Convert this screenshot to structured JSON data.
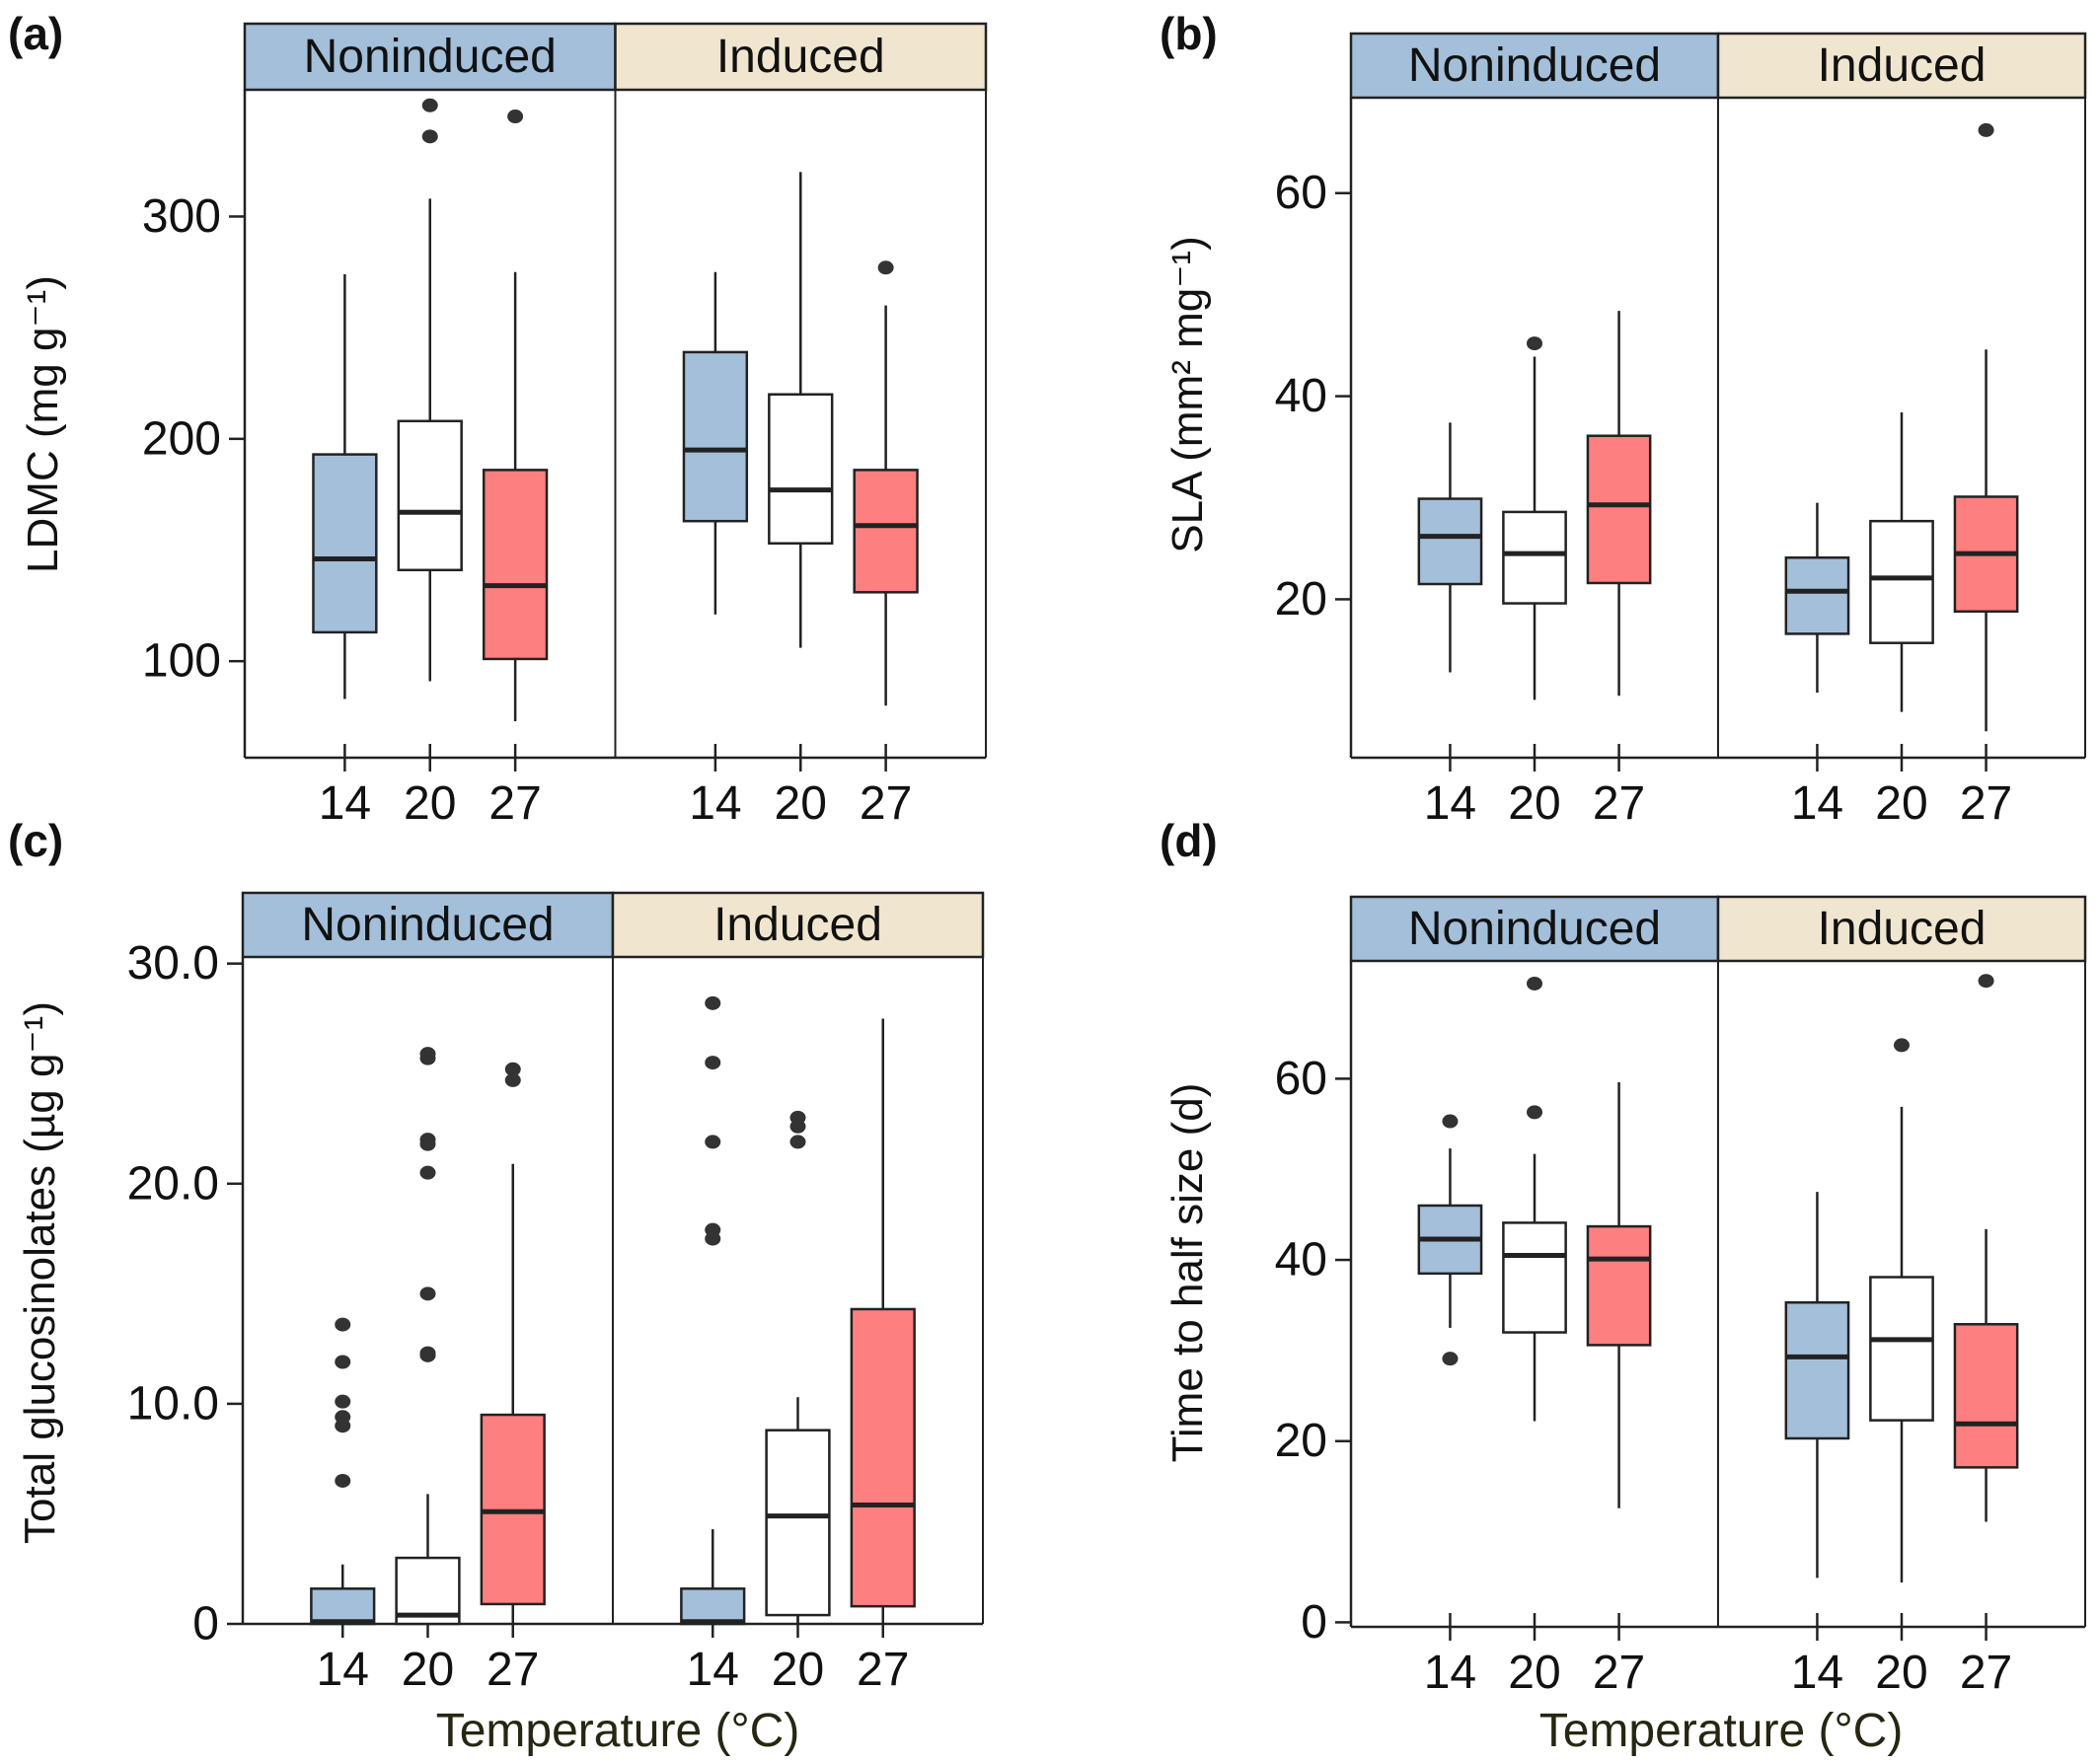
{
  "colors": {
    "noninduced_strip": "#a3bfd9",
    "induced_strip": "#f0e5cf",
    "box_14": "#a3bfd9",
    "box_20": "#ffffff",
    "box_27": "#fd7f7f",
    "line": "#222222",
    "outlier": "#333333"
  },
  "chart_data": [
    {
      "type": "box",
      "panel": "(a)",
      "ylabel": "LDMC (mg g⁻¹)",
      "xlabel": "",
      "facets": [
        "Noninduced",
        "Induced"
      ],
      "categories": [
        "14",
        "20",
        "27"
      ],
      "ylim": [
        56.6,
        357
      ],
      "yticks": [
        100,
        200,
        300
      ],
      "ytick_labels": [
        "100",
        "200",
        "300"
      ],
      "groups": [
        {
          "facet": "Noninduced",
          "temp": "14",
          "whisker_low": 83,
          "q1": 113,
          "median": 146,
          "q3": 193,
          "whisker_high": 274,
          "outliers": []
        },
        {
          "facet": "Noninduced",
          "temp": "20",
          "whisker_low": 91,
          "q1": 141,
          "median": 167,
          "q3": 208,
          "whisker_high": 308,
          "outliers": [
            336,
            350
          ]
        },
        {
          "facet": "Noninduced",
          "temp": "27",
          "whisker_low": 73,
          "q1": 101,
          "median": 134,
          "q3": 186,
          "whisker_high": 275,
          "outliers": [
            345
          ]
        },
        {
          "facet": "Induced",
          "temp": "14",
          "whisker_low": 121,
          "q1": 163,
          "median": 195,
          "q3": 239,
          "whisker_high": 275,
          "outliers": []
        },
        {
          "facet": "Induced",
          "temp": "20",
          "whisker_low": 106,
          "q1": 153,
          "median": 177,
          "q3": 220,
          "whisker_high": 320,
          "outliers": []
        },
        {
          "facet": "Induced",
          "temp": "27",
          "whisker_low": 80,
          "q1": 131,
          "median": 161,
          "q3": 186,
          "whisker_high": 260,
          "outliers": [
            277
          ]
        }
      ]
    },
    {
      "type": "box",
      "panel": "(b)",
      "ylabel": "SLA (mm² mg⁻¹)",
      "xlabel": "",
      "facets": [
        "Noninduced",
        "Induced"
      ],
      "categories": [
        "14",
        "20",
        "27"
      ],
      "ylim": [
        4.4,
        69.4
      ],
      "yticks": [
        20,
        40,
        60
      ],
      "ytick_labels": [
        "20",
        "40",
        "60"
      ],
      "groups": [
        {
          "facet": "Noninduced",
          "temp": "14",
          "whisker_low": 12.8,
          "q1": 21.5,
          "median": 26.2,
          "q3": 29.9,
          "whisker_high": 37.4,
          "outliers": []
        },
        {
          "facet": "Noninduced",
          "temp": "20",
          "whisker_low": 10.1,
          "q1": 19.6,
          "median": 24.5,
          "q3": 28.6,
          "whisker_high": 43.9,
          "outliers": [
            45.2
          ]
        },
        {
          "facet": "Noninduced",
          "temp": "27",
          "whisker_low": 10.5,
          "q1": 21.6,
          "median": 29.3,
          "q3": 36.1,
          "whisker_high": 48.4,
          "outliers": []
        },
        {
          "facet": "Induced",
          "temp": "14",
          "whisker_low": 10.8,
          "q1": 16.6,
          "median": 20.8,
          "q3": 24.1,
          "whisker_high": 29.5,
          "outliers": []
        },
        {
          "facet": "Induced",
          "temp": "20",
          "whisker_low": 8.9,
          "q1": 15.7,
          "median": 22.1,
          "q3": 27.7,
          "whisker_high": 38.4,
          "outliers": []
        },
        {
          "facet": "Induced",
          "temp": "27",
          "whisker_low": 7.0,
          "q1": 18.8,
          "median": 24.5,
          "q3": 30.1,
          "whisker_high": 44.6,
          "outliers": [
            66.2
          ]
        }
      ]
    },
    {
      "type": "box",
      "panel": "(c)",
      "ylabel": "Total glucosinolates (µg  g⁻¹)",
      "xlabel": "Temperature (°C)",
      "facets": [
        "Noninduced",
        "Induced"
      ],
      "categories": [
        "14",
        "20",
        "27"
      ],
      "ylim": [
        0,
        30.3
      ],
      "yticks": [
        0,
        10,
        20,
        30
      ],
      "ytick_labels": [
        "0",
        "10.0",
        "20.0",
        "30.0"
      ],
      "groups": [
        {
          "facet": "Noninduced",
          "temp": "14",
          "whisker_low": 0,
          "q1": 0,
          "median": 0.1,
          "q3": 1.6,
          "whisker_high": 2.7,
          "outliers": [
            6.5,
            9.0,
            9.4,
            10.1,
            11.9,
            13.6
          ]
        },
        {
          "facet": "Noninduced",
          "temp": "20",
          "whisker_low": 0,
          "q1": 0,
          "median": 0.4,
          "q3": 3.0,
          "whisker_high": 5.9,
          "outliers": [
            12.2,
            12.3,
            15.0,
            20.5,
            21.8,
            22.0,
            25.7,
            25.9
          ]
        },
        {
          "facet": "Noninduced",
          "temp": "27",
          "whisker_low": 0,
          "q1": 0.9,
          "median": 5.1,
          "q3": 9.5,
          "whisker_high": 20.9,
          "outliers": [
            24.7,
            25.2
          ]
        },
        {
          "facet": "Induced",
          "temp": "14",
          "whisker_low": 0,
          "q1": 0,
          "median": 0.1,
          "q3": 1.6,
          "whisker_high": 4.3,
          "outliers": [
            17.5,
            17.9,
            21.9,
            25.5,
            28.2
          ]
        },
        {
          "facet": "Induced",
          "temp": "20",
          "whisker_low": 0,
          "q1": 0.4,
          "median": 4.9,
          "q3": 8.8,
          "whisker_high": 10.3,
          "outliers": [
            21.9,
            22.6,
            23.0
          ]
        },
        {
          "facet": "Induced",
          "temp": "27",
          "whisker_low": 0,
          "q1": 0.8,
          "median": 5.4,
          "q3": 14.3,
          "whisker_high": 27.5,
          "outliers": []
        }
      ]
    },
    {
      "type": "box",
      "panel": "(d)",
      "ylabel": "Time to half size (d)",
      "xlabel": "Temperature (°C)",
      "facets": [
        "Noninduced",
        "Induced"
      ],
      "categories": [
        "14",
        "20",
        "27"
      ],
      "ylim": [
        -0.5,
        73
      ],
      "yticks": [
        0,
        20,
        40,
        60
      ],
      "ytick_labels": [
        "0",
        "20",
        "40",
        "60"
      ],
      "groups": [
        {
          "facet": "Noninduced",
          "temp": "14",
          "whisker_low": 32.5,
          "q1": 38.5,
          "median": 42.3,
          "q3": 46.0,
          "whisker_high": 52.3,
          "outliers": [
            29.1,
            55.3
          ]
        },
        {
          "facet": "Noninduced",
          "temp": "20",
          "whisker_low": 22.2,
          "q1": 32.0,
          "median": 40.5,
          "q3": 44.1,
          "whisker_high": 51.7,
          "outliers": [
            56.3,
            70.5
          ]
        },
        {
          "facet": "Noninduced",
          "temp": "27",
          "whisker_low": 12.6,
          "q1": 30.6,
          "median": 40.1,
          "q3": 43.7,
          "whisker_high": 59.6,
          "outliers": []
        },
        {
          "facet": "Induced",
          "temp": "14",
          "whisker_low": 4.9,
          "q1": 20.3,
          "median": 29.3,
          "q3": 35.3,
          "whisker_high": 47.5,
          "outliers": []
        },
        {
          "facet": "Induced",
          "temp": "20",
          "whisker_low": 4.4,
          "q1": 22.3,
          "median": 31.2,
          "q3": 38.1,
          "whisker_high": 56.9,
          "outliers": [
            63.7
          ]
        },
        {
          "facet": "Induced",
          "temp": "27",
          "whisker_low": 11.1,
          "q1": 17.1,
          "median": 21.9,
          "q3": 32.9,
          "whisker_high": 43.4,
          "outliers": [
            70.8
          ]
        }
      ]
    }
  ]
}
